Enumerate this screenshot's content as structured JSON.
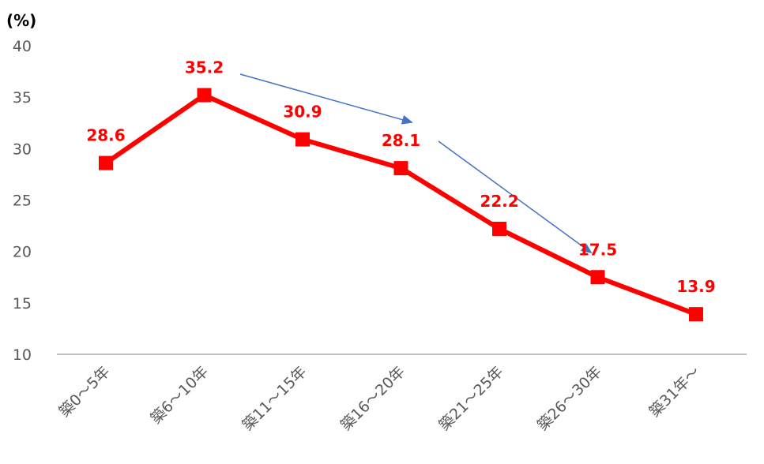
{
  "chart_data": {
    "type": "line",
    "title": "",
    "xlabel": "",
    "ylabel": "(%)",
    "ylim": [
      10,
      40
    ],
    "yticks": [
      10,
      15,
      20,
      25,
      30,
      35,
      40
    ],
    "categories": [
      "築0～5年",
      "築6～10年",
      "築11～15年",
      "築16～20年",
      "築21～25年",
      "築26～30年",
      "築31年～"
    ],
    "series": [
      {
        "values": [
          28.6,
          35.2,
          30.9,
          28.1,
          22.2,
          17.5,
          13.9
        ],
        "data_labels": [
          "28.6",
          "35.2",
          "30.9",
          "28.1",
          "22.2",
          "17.5",
          "13.9"
        ],
        "color": "#ff0000",
        "marker": "square"
      }
    ],
    "annotations": [
      {
        "type": "arrow",
        "from_category": "築6～10年",
        "to_category": "築16～20年",
        "color": "#4472c4"
      },
      {
        "type": "arrow",
        "from_category": "築16～20年",
        "to_category": "築26～30年",
        "color": "#4472c4"
      }
    ],
    "grid": false,
    "legend": "none",
    "colors": {
      "series": "#ff0000",
      "axis": "#bfbfbf",
      "arrow": "#4472c4",
      "label": "#ff0000",
      "tick": "#595959"
    }
  }
}
